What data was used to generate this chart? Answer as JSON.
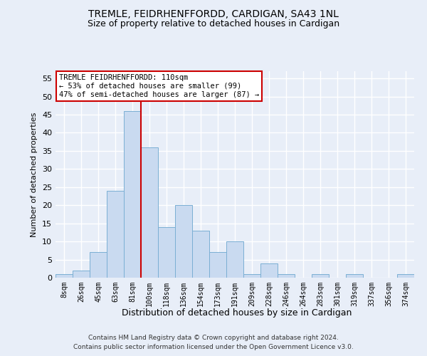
{
  "title": "TREMLE, FEIDRHENFFORDD, CARDIGAN, SA43 1NL",
  "subtitle": "Size of property relative to detached houses in Cardigan",
  "xlabel": "Distribution of detached houses by size in Cardigan",
  "ylabel": "Number of detached properties",
  "categories": [
    "8sqm",
    "26sqm",
    "45sqm",
    "63sqm",
    "81sqm",
    "100sqm",
    "118sqm",
    "136sqm",
    "154sqm",
    "173sqm",
    "191sqm",
    "209sqm",
    "228sqm",
    "246sqm",
    "264sqm",
    "283sqm",
    "301sqm",
    "319sqm",
    "337sqm",
    "356sqm",
    "374sqm"
  ],
  "values": [
    1,
    2,
    7,
    24,
    46,
    36,
    14,
    20,
    13,
    7,
    10,
    1,
    4,
    1,
    0,
    1,
    0,
    1,
    0,
    0,
    1
  ],
  "bar_color": "#c9daf0",
  "bar_edge_color": "#7bafd4",
  "ylim": [
    0,
    57
  ],
  "yticks": [
    0,
    5,
    10,
    15,
    20,
    25,
    30,
    35,
    40,
    45,
    50,
    55
  ],
  "vline_x": 4.5,
  "vline_color": "#cc0000",
  "annotation_text": "TREMLE FEIDRHENFFORDD: 110sqm\n← 53% of detached houses are smaller (99)\n47% of semi-detached houses are larger (87) →",
  "annotation_box_color": "#ffffff",
  "annotation_box_edge": "#cc0000",
  "footer_line1": "Contains HM Land Registry data © Crown copyright and database right 2024.",
  "footer_line2": "Contains public sector information licensed under the Open Government Licence v3.0.",
  "bg_color": "#e8eef8",
  "plot_bg_color": "#e8eef8",
  "grid_color": "#ffffff",
  "title_fontsize": 10,
  "subtitle_fontsize": 9
}
